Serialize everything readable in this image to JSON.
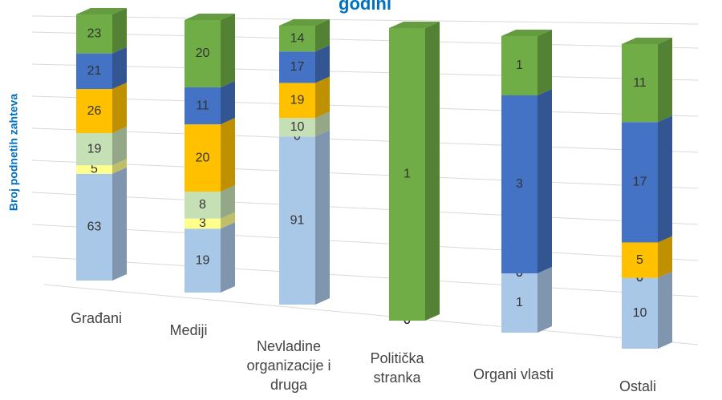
{
  "chart_data": {
    "type": "bar3d",
    "stacking": "percent",
    "title": "godini",
    "ylabel": "Broj podnetih zahteva",
    "categories": [
      "Građani",
      "Mediji",
      "Nevladine organizacije i druga",
      "Politička stranka",
      "Organi vlasti",
      "Ostali"
    ],
    "series": [
      {
        "color": "#a9c8e8",
        "values": [
          63,
          19,
          91,
          0,
          1,
          10
        ]
      },
      {
        "color": "#ffff8c",
        "values": [
          5,
          3,
          0,
          0,
          0,
          0
        ]
      },
      {
        "color": "#c5e0b4",
        "values": [
          19,
          8,
          10,
          0,
          0,
          0
        ]
      },
      {
        "color": "#ffc000",
        "values": [
          26,
          20,
          19,
          0,
          0,
          5
        ]
      },
      {
        "color": "#4472c4",
        "values": [
          21,
          11,
          17,
          0,
          3,
          17
        ]
      },
      {
        "color": "#70ad47",
        "values": [
          23,
          20,
          14,
          1,
          1,
          11
        ]
      }
    ]
  }
}
